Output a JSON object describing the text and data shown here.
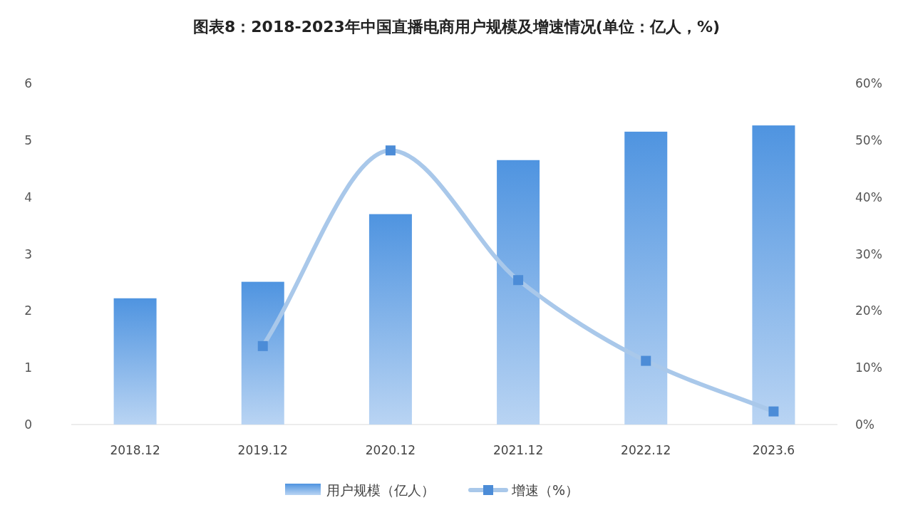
{
  "chart_data": {
    "type": "bar",
    "title": "图表8：2018-2023年中国直播电商用户规模及增速情况(单位：亿人，%)",
    "categories": [
      "2018.12",
      "2019.12",
      "2020.12",
      "2021.12",
      "2022.12",
      "2023.6"
    ],
    "series": [
      {
        "name": "用户规模（亿人）",
        "color": "#4f94e0",
        "values": [
          2.22,
          2.51,
          3.7,
          4.65,
          5.15,
          5.26
        ]
      },
      {
        "name": "增速（%）",
        "type": "line",
        "axis": "y2",
        "color": "#a9c8ea",
        "values": [
          null,
          13.8,
          48.2,
          25.4,
          11.2,
          2.3
        ]
      }
    ],
    "ylim": [
      0,
      6
    ],
    "yticks": [
      0,
      1,
      2,
      3,
      4,
      5,
      6
    ],
    "y2lim": [
      0,
      60
    ],
    "y2ticks": [
      {
        "value": 0,
        "label": "0%"
      },
      {
        "value": 10,
        "label": "10%"
      },
      {
        "value": 20,
        "label": "20%"
      },
      {
        "value": 30,
        "label": "30%"
      },
      {
        "value": 40,
        "label": "40%"
      },
      {
        "value": 50,
        "label": "50%"
      },
      {
        "value": 60,
        "label": "60%"
      }
    ],
    "marker": "square",
    "legend": "bottom"
  }
}
